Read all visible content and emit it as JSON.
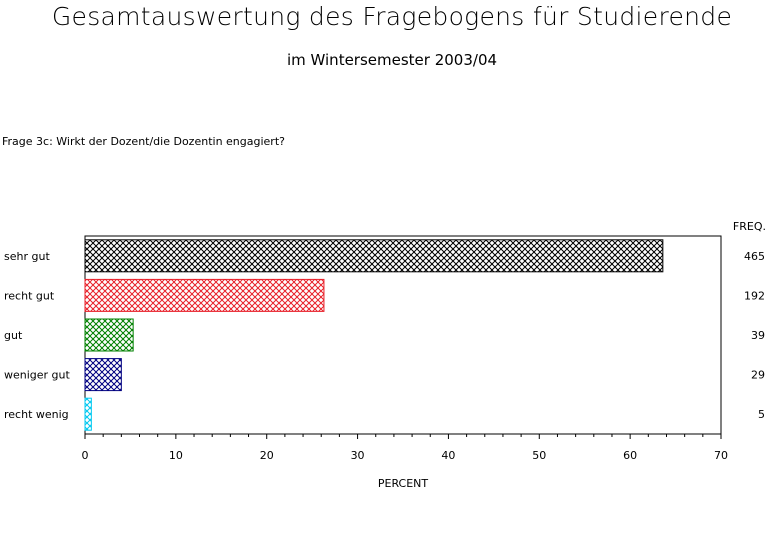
{
  "page": {
    "title": "Gesamtauswertung des Fragebogens für Studierende",
    "subtitle": "im Wintersemester 2003/04",
    "question": "Frage 3c: Wirkt der Dozent/die Dozentin engagiert?"
  },
  "chart_data": {
    "type": "bar",
    "orientation": "horizontal",
    "categories": [
      "sehr gut",
      "recht gut",
      "gut",
      "weniger gut",
      "recht wenig"
    ],
    "values": [
      63.6,
      26.3,
      5.3,
      4.0,
      0.7
    ],
    "freq": [
      465,
      192,
      39,
      29,
      5
    ],
    "freq_header": "FREQ.",
    "xlabel": "PERCENT",
    "ylabel": "",
    "xlim": [
      0,
      70
    ],
    "xticks": [
      0,
      10,
      20,
      30,
      40,
      50,
      60,
      70
    ],
    "grid": false,
    "fill_pattern": "crosshatch",
    "colors": [
      "#000000",
      "#e8202a",
      "#008000",
      "#000080",
      "#00c8f0"
    ]
  }
}
